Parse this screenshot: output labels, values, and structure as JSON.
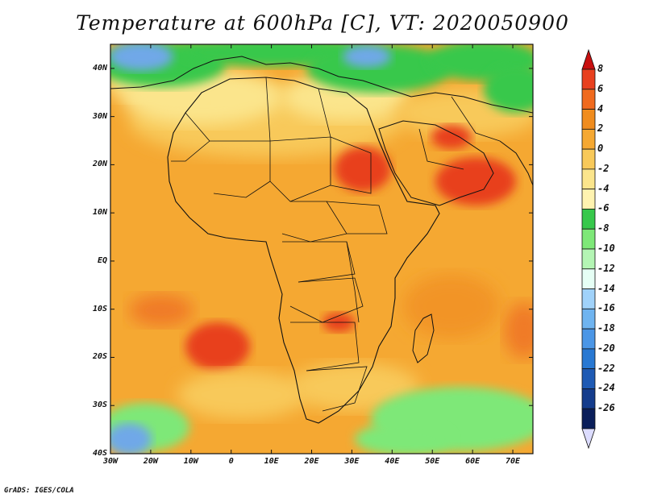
{
  "title": "Temperature at 600hPa [C], VT: 2020050900",
  "credit": "GrADS: IGES/COLA",
  "map": {
    "type": "filled-contour-map",
    "variable": "Temperature",
    "level": "600hPa",
    "units": "C",
    "lat_labels": [
      "40N",
      "30N",
      "20N",
      "10N",
      "EQ",
      "10S",
      "20S",
      "30S",
      "40S"
    ],
    "lon_labels": [
      "30W",
      "20W",
      "10W",
      "0",
      "10E",
      "20E",
      "30E",
      "40E",
      "50E",
      "60E",
      "70E"
    ],
    "lat_range": [
      -40,
      45
    ],
    "lon_range": [
      -30,
      75
    ],
    "colors": {
      "very_warm": "#e8401e",
      "warm": "#f08c1e",
      "orange": "#f5a832",
      "light_orange": "#f8c95a",
      "pale_yellow": "#fbe58c",
      "pale": "#fff3b0",
      "green": "#37c84b",
      "light_green": "#7ee878",
      "blue": "#6fa8e8"
    }
  },
  "colorbar": {
    "labels": [
      "8",
      "6",
      "4",
      "2",
      "0",
      "-2",
      "-4",
      "-6",
      "-8",
      "-10",
      "-12",
      "-14",
      "-16",
      "-18",
      "-20",
      "-22",
      "-24",
      "-26"
    ],
    "colors": [
      "#c80f0f",
      "#e8401e",
      "#f06a1e",
      "#f08c1e",
      "#f5a832",
      "#f8c95a",
      "#fbe58c",
      "#fff3b0",
      "#37c84b",
      "#7ee878",
      "#b4f5b4",
      "#e6fff5",
      "#a0d2fa",
      "#6fb4f0",
      "#4b96e6",
      "#2878d2",
      "#1e5ab4",
      "#143c8c",
      "#0a1e5a",
      "#dcdcff"
    ]
  }
}
